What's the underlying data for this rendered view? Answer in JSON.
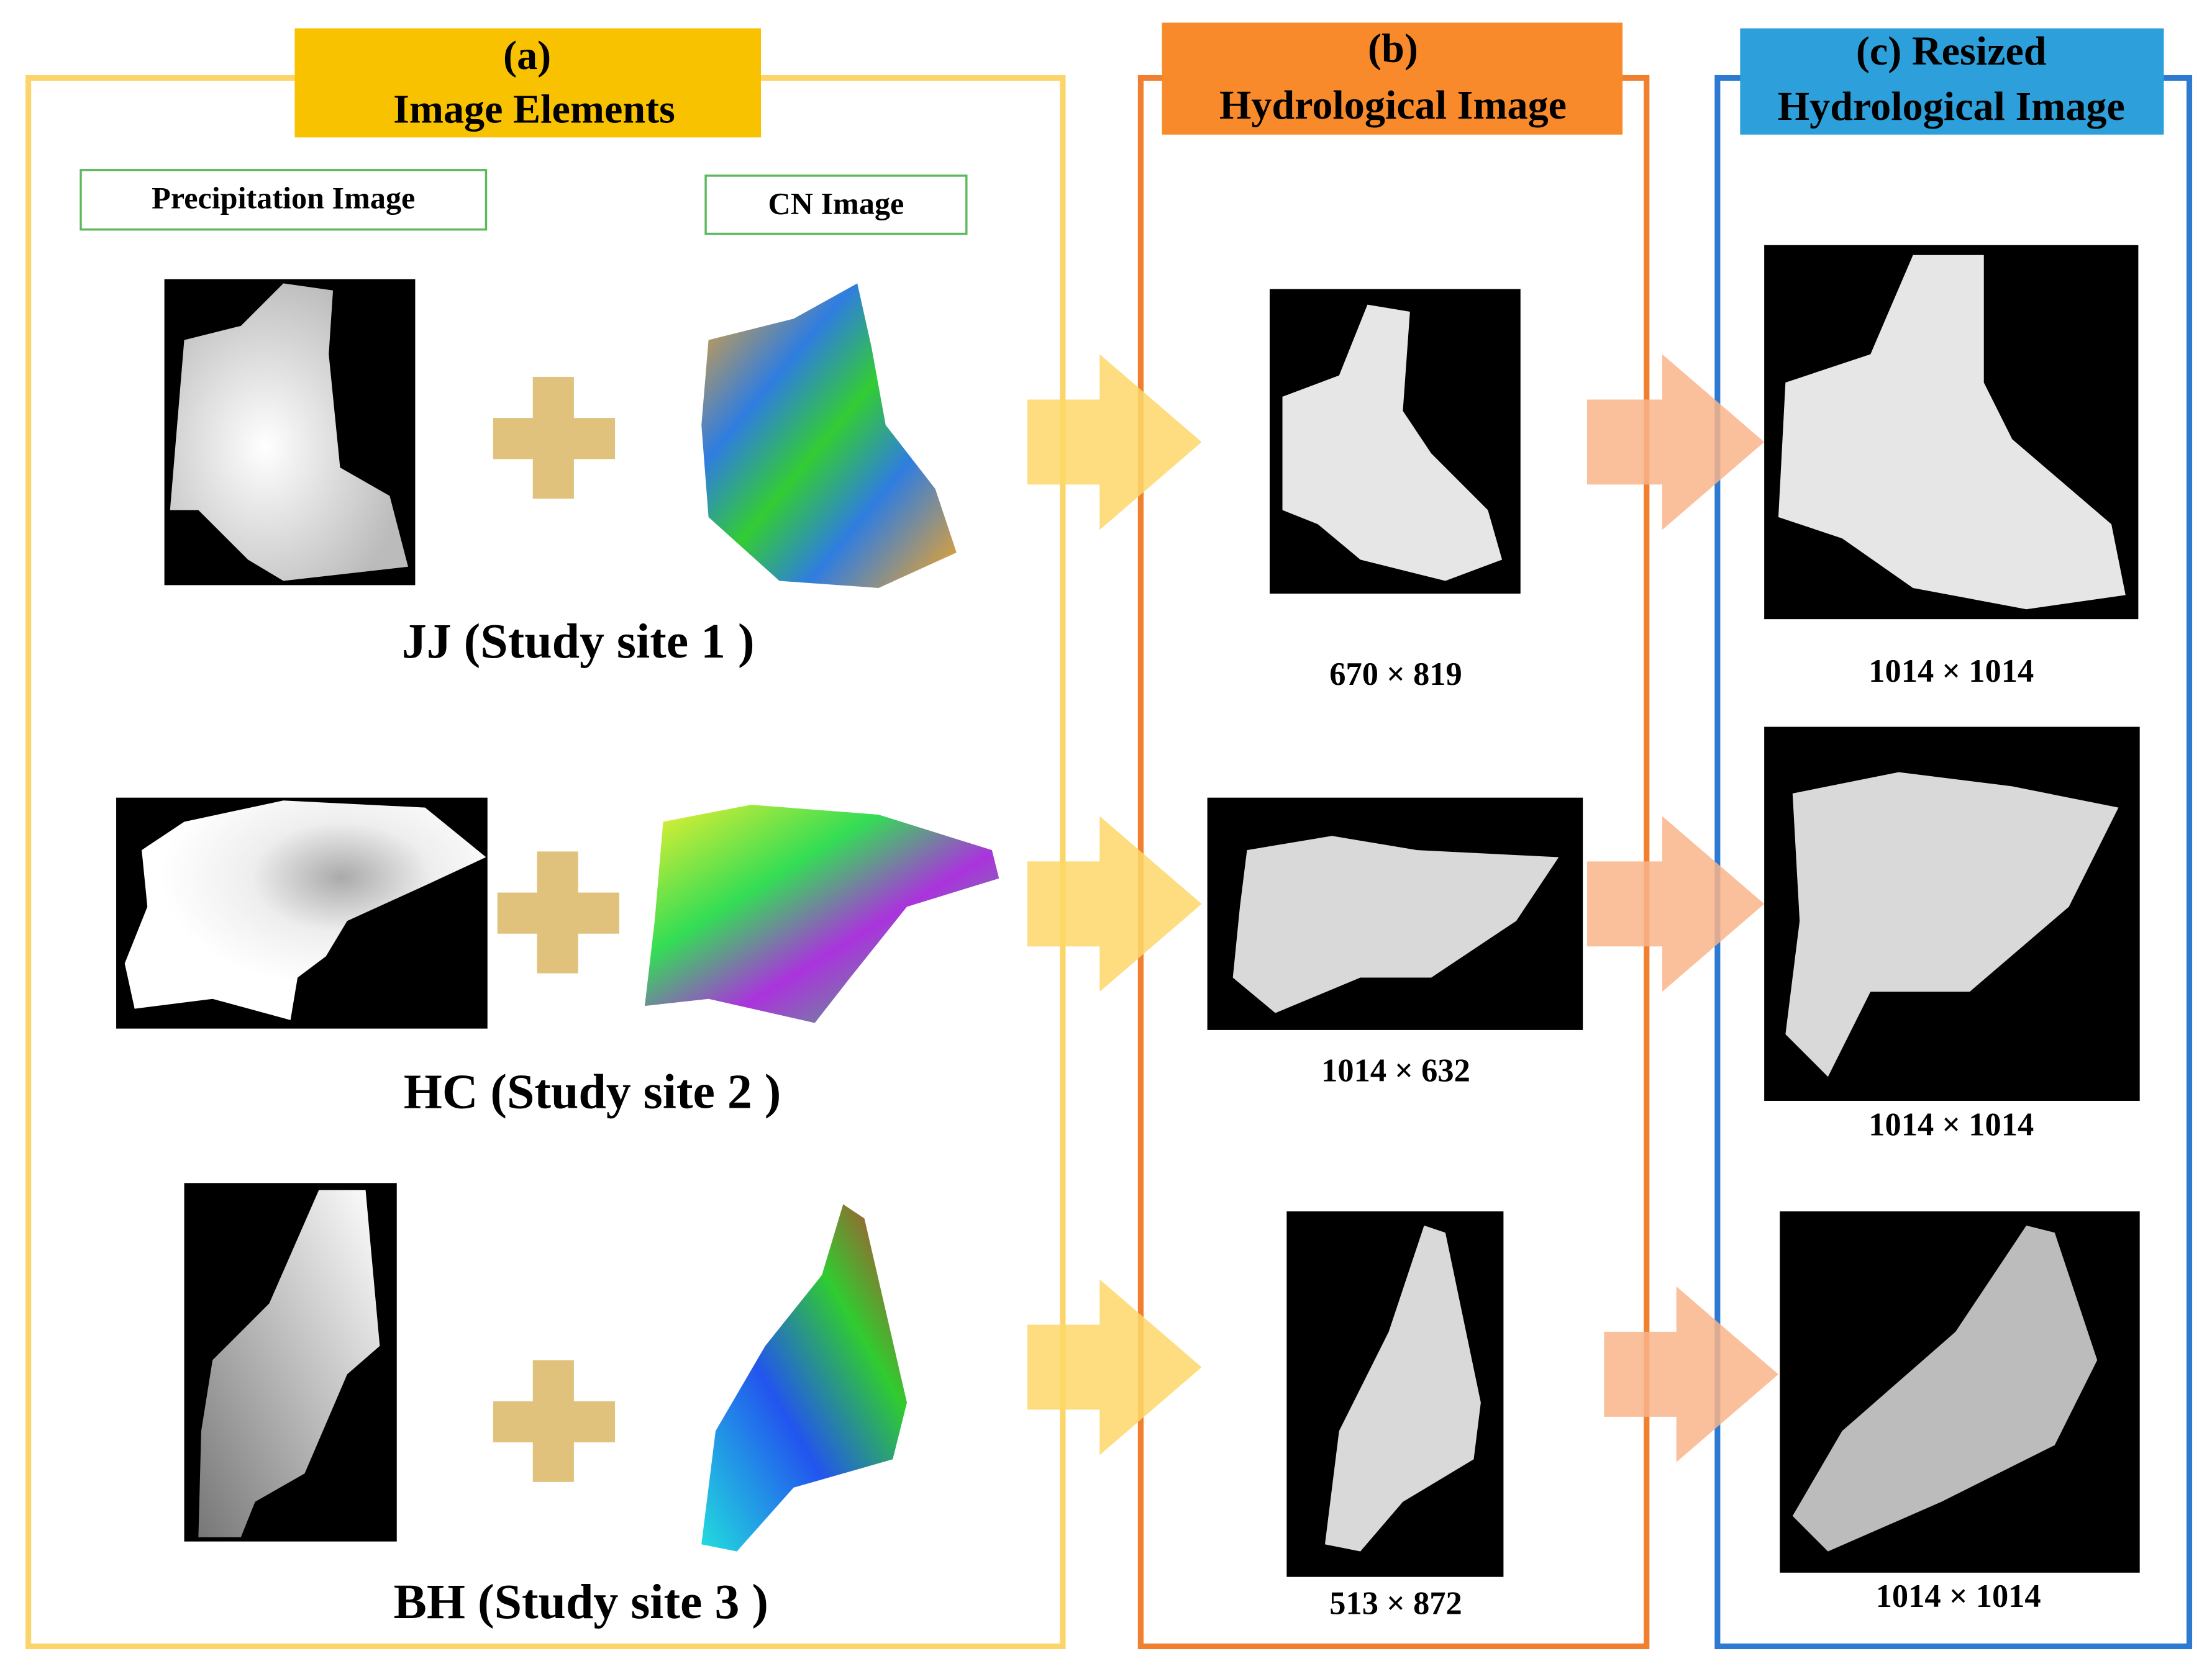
{
  "panels": [
    {
      "title": [
        "(a)",
        "Image Elements"
      ]
    },
    {
      "title": [
        "(b)",
        "Hydrological Image"
      ]
    },
    {
      "title": [
        "(c) Resized",
        "Hydrological Image"
      ]
    }
  ],
  "column_labels": [
    "Precipitation Image",
    "CN Image"
  ],
  "sites": [
    "JJ (Study site 1 )",
    "HC (Study site 2 )",
    "BH (Study site 3 )"
  ],
  "hydrological_sizes": [
    "670 × 819",
    "1014 × 632",
    "513 × 872"
  ],
  "resized_sizes": [
    "1014 × 1014",
    "1014 × 1014",
    "1014 × 1014"
  ]
}
